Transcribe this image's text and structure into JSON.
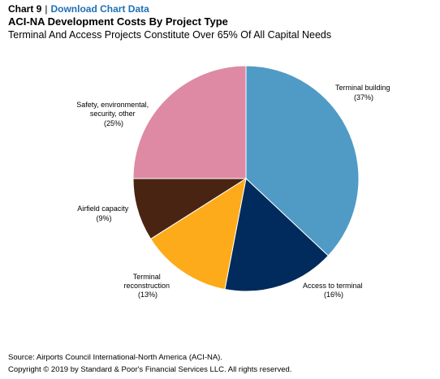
{
  "header": {
    "chart_number": "Chart 9",
    "separator": "|",
    "download_link": "Download Chart Data",
    "title": "ACI-NA Development Costs By Project Type",
    "subtitle": "Terminal And Access Projects Constitute Over 65% Of All Capital Needs"
  },
  "chart_data": {
    "type": "pie",
    "title": "ACI-NA Development Costs By Project Type",
    "slices": [
      {
        "label": "Terminal building",
        "value": 37,
        "pct_text": "(37%)",
        "color": "#4f9bc6"
      },
      {
        "label": "Access to terminal",
        "value": 16,
        "pct_text": "(16%)",
        "color": "#002b5c"
      },
      {
        "label": "Terminal reconstruction",
        "value": 13,
        "pct_text": "(13%)",
        "color": "#fdab1b"
      },
      {
        "label": "Airfield capacity",
        "value": 9,
        "pct_text": "(9%)",
        "color": "#4a2412"
      },
      {
        "label": "Safety, environmental, security, other",
        "value": 25,
        "pct_text": "(25%)",
        "color": "#de8aa4"
      }
    ]
  },
  "footer": {
    "source": "Source: Airports Council International-North America (ACI-NA).",
    "copyright": "Copyright © 2019 by Standard & Poor's Financial Services LLC. All rights reserved."
  }
}
